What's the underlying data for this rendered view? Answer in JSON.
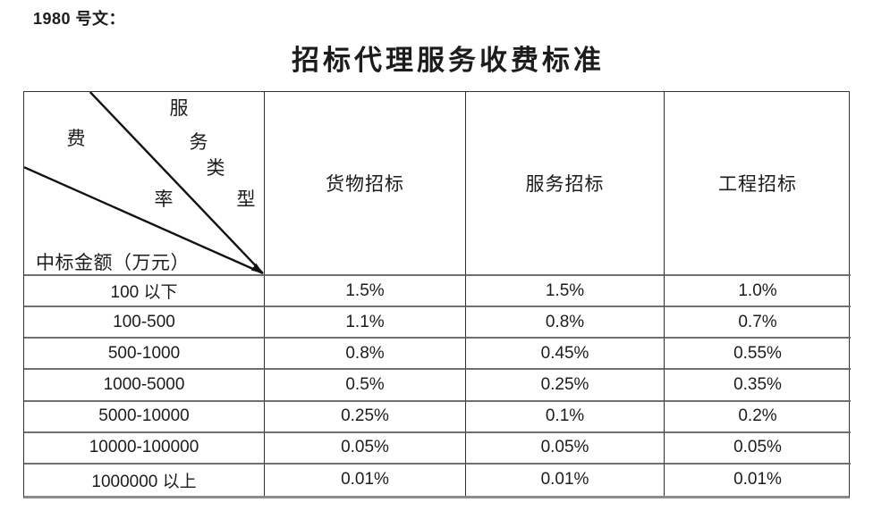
{
  "doc": {
    "ref_label": "1980 号文：",
    "title": "招标代理服务收费标准"
  },
  "table": {
    "corner": {
      "col_axis_chars": [
        "服",
        "务",
        "类",
        "型"
      ],
      "rate_chars": [
        "费",
        "率"
      ],
      "row_axis_label": "中标金额（万元）"
    },
    "columns": [
      "货物招标",
      "服务招标",
      "工程招标"
    ],
    "rows": [
      {
        "range": "100 以下",
        "values": [
          "1.5%",
          "1.5%",
          "1.0%"
        ]
      },
      {
        "range": "100-500",
        "values": [
          "1.1%",
          "0.8%",
          "0.7%"
        ]
      },
      {
        "range": "500-1000",
        "values": [
          "0.8%",
          "0.45%",
          "0.55%"
        ]
      },
      {
        "range": "1000-5000",
        "values": [
          "0.5%",
          "0.25%",
          "0.35%"
        ]
      },
      {
        "range": "5000-10000",
        "values": [
          "0.25%",
          "0.1%",
          "0.2%"
        ]
      },
      {
        "range": "10000-100000",
        "values": [
          "0.05%",
          "0.05%",
          "0.05%"
        ]
      },
      {
        "range": "1000000 以上",
        "values": [
          "0.01%",
          "0.01%",
          "0.01%"
        ]
      }
    ]
  },
  "colors": {
    "text": "#1c1c1c",
    "rule_vertical": "#2f2f2f",
    "rule_horizontal": "#6f6f6f",
    "diagonal_line": "#111111"
  }
}
